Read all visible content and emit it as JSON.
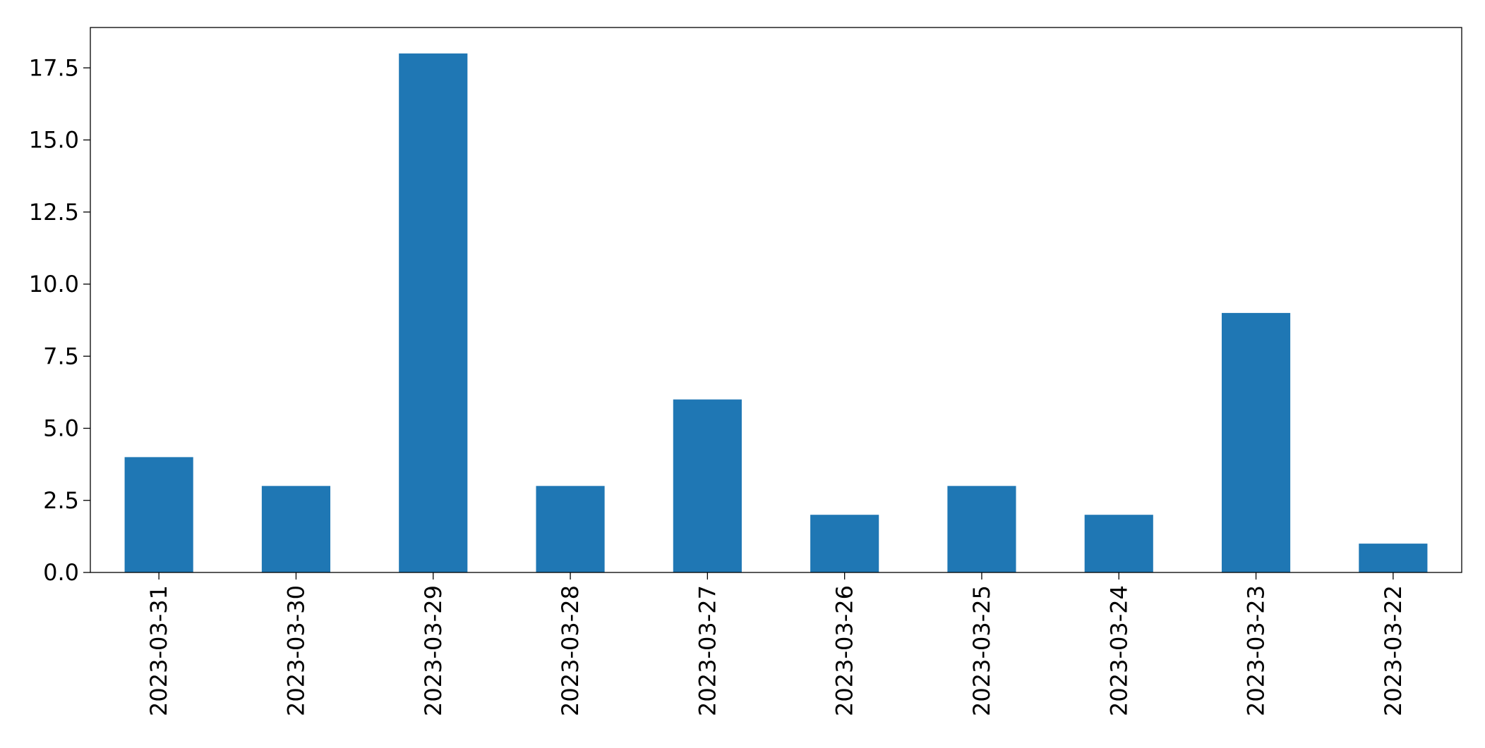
{
  "chart_data": {
    "type": "bar",
    "title": "",
    "xlabel": "",
    "ylabel": "",
    "categories": [
      "2023-03-31",
      "2023-03-30",
      "2023-03-29",
      "2023-03-28",
      "2023-03-27",
      "2023-03-26",
      "2023-03-25",
      "2023-03-24",
      "2023-03-23",
      "2023-03-22"
    ],
    "values": [
      4,
      3,
      18,
      3,
      6,
      2,
      3,
      2,
      9,
      1
    ],
    "ylim": [
      0,
      18.9
    ],
    "yticks": [
      "0.0",
      "2.5",
      "5.0",
      "7.5",
      "10.0",
      "12.5",
      "15.0",
      "17.5"
    ],
    "grid": false,
    "legend": "none",
    "bar_color": "#1f77b4"
  }
}
